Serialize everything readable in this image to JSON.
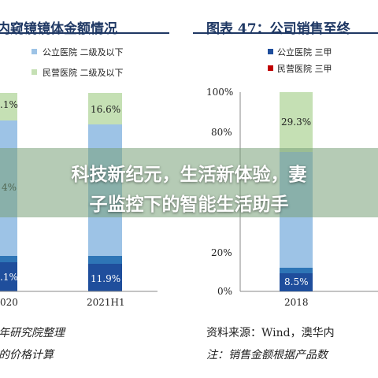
{
  "left_panel": {
    "title": "内窥镜镜体金额情况",
    "legend": [
      "公立医院 二级及以下",
      "民营医院 二级及以下"
    ],
    "bar_labels": [
      ".1%",
      "4%",
      ".1%",
      "16.6%",
      "11.9%"
    ],
    "categories": [
      "020",
      "2021H1"
    ],
    "source": [
      "年研究院整理",
      "的价格计算"
    ]
  },
  "right_panel": {
    "title": "图表 47：公司销售至终",
    "legend": [
      "公立医院 三甲",
      "民营医院 三甲"
    ],
    "yticks": [
      "100%",
      "80%",
      "20%",
      "0%"
    ],
    "bar_labels": [
      "29.3%",
      "8.5%"
    ],
    "categories": [
      "2018"
    ],
    "source": [
      "资料来源：Wind，澳华内",
      "注：销售金额根据产品数"
    ]
  },
  "overlay": {
    "title_lines": [
      "科技新纪元，生活新体验，妻",
      "子监控下的智能生活助手"
    ]
  }
}
